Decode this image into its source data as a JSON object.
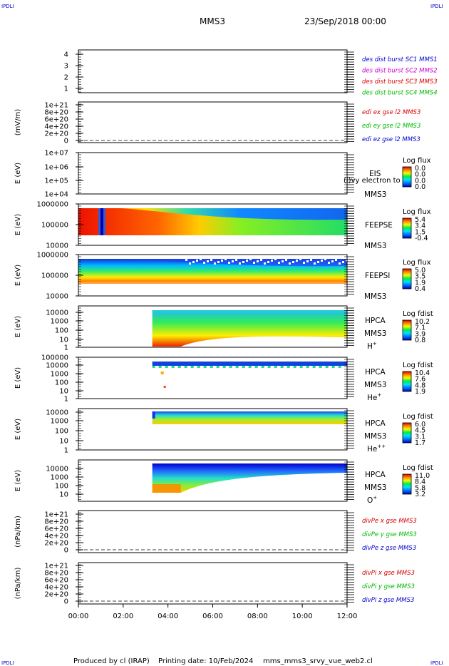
{
  "header": {
    "corner_tl": "IPDLI",
    "corner_tr": "IPDLI",
    "corner_bl": "IPDLI",
    "corner_br": "IPDLI",
    "title": "MMS3",
    "date": "23/Sep/2018 00:00"
  },
  "footer": {
    "produced_by": "Produced by cl (IRAP)",
    "printing_date": "Printing date: 10/Feb/2024",
    "filename": "mms_mms3_srvy_vue_web2.cl"
  },
  "colors": {
    "blue": "#0000cc",
    "magenta": "#cc00cc",
    "red": "#dd0000",
    "green": "#00bb00",
    "axis": "#000000"
  },
  "chart_data": {
    "type": "heatmap",
    "xaxis": {
      "tick_labels": [
        "00:00",
        "02:00",
        "04:00",
        "06:00",
        "08:00",
        "10:00",
        "12:00"
      ],
      "range_hours": [
        0,
        12
      ]
    },
    "panels": [
      {
        "id": "dist-burst",
        "kind": "line",
        "ylabel": "",
        "yticks": [
          "4",
          "3",
          "2",
          "1"
        ],
        "legend": [
          {
            "text": "des dist burst SC1 MMS1",
            "color": "#0000cc"
          },
          {
            "text": "des dist burst SC2 MMS2",
            "color": "#cc00cc"
          },
          {
            "text": "des dist burst SC3 MMS3",
            "color": "#dd0000"
          },
          {
            "text": "des dist burst SC4 MMS4",
            "color": "#00bb00"
          }
        ]
      },
      {
        "id": "edi-e",
        "kind": "line",
        "ylabel": "(mV/m)",
        "yticks": [
          "1e+21",
          "8e+20",
          "6e+20",
          "4e+20",
          "2e+20",
          "0"
        ],
        "zero_line": true,
        "legend": [
          {
            "text": "edi ex gse l2 MMS3",
            "color": "#dd0000"
          },
          {
            "text": "edi ey gse l2 MMS3",
            "color": "#00bb00"
          },
          {
            "text": "edi ez gse l2 MMS3",
            "color": "#0000cc"
          }
        ]
      },
      {
        "id": "eis",
        "kind": "spectrogram",
        "ylabel": "E (eV)",
        "yticks": [
          "1e+07",
          "1e+06",
          "1e+05",
          "1e+04"
        ],
        "label_top": "EIS",
        "label_bottom": "MMS3",
        "overlay_text": "(l)vy electron to",
        "colorbar": {
          "title": "Log flux",
          "ticks": [
            "0.0",
            "0.0",
            "0.0",
            "0.0"
          ]
        }
      },
      {
        "id": "feepse",
        "kind": "spectrogram",
        "ylabel": "E (eV)",
        "yticks": [
          "1000000",
          "100000",
          "10000"
        ],
        "label_top": "FEEPSE",
        "label_bottom": "MMS3",
        "colorbar": {
          "title": "Log flux",
          "ticks": [
            "5.4",
            "3.4",
            "1.5",
            "-0.4"
          ]
        }
      },
      {
        "id": "feepsi",
        "kind": "spectrogram",
        "ylabel": "E (eV)",
        "yticks": [
          "1000000",
          "100000",
          "10000"
        ],
        "label_top": "FEEPSI",
        "label_bottom": "MMS3",
        "colorbar": {
          "title": "Log flux",
          "ticks": [
            "5.0",
            "3.5",
            "1.9",
            "0.4"
          ]
        }
      },
      {
        "id": "hpca-h",
        "kind": "spectrogram",
        "ylabel": "E (eV)",
        "yticks": [
          "10000",
          "1000",
          "100",
          "10",
          "1"
        ],
        "label_top": "HPCA",
        "label_mid": "MMS3",
        "species": "H",
        "species_sup": "+",
        "colorbar": {
          "title": "Log fdist",
          "ticks": [
            "10.2",
            "7.1",
            "3.9",
            "0.8"
          ]
        }
      },
      {
        "id": "hpca-he",
        "kind": "spectrogram",
        "ylabel": "E (eV)",
        "yticks": [
          "100000",
          "10000",
          "1000",
          "100",
          "10",
          "1"
        ],
        "label_top": "HPCA",
        "label_mid": "MMS3",
        "species": "He",
        "species_sup": "+",
        "colorbar": {
          "title": "Log fdist",
          "ticks": [
            "10.4",
            "7.6",
            "4.8",
            "1.9"
          ]
        }
      },
      {
        "id": "hpca-he2",
        "kind": "spectrogram",
        "ylabel": "E (eV)",
        "yticks": [
          "10000",
          "1000",
          "100",
          "10",
          "1"
        ],
        "label_top": "HPCA",
        "label_mid": "MMS3",
        "species": "He",
        "species_sup": "++",
        "colorbar": {
          "title": "Log fdist",
          "ticks": [
            "6.0",
            "4.5",
            "3.1",
            "1.7"
          ]
        }
      },
      {
        "id": "hpca-o",
        "kind": "spectrogram",
        "ylabel": "E (eV)",
        "yticks": [
          "10000",
          "1000",
          "100",
          "10"
        ],
        "label_top": "HPCA",
        "label_mid": "MMS3",
        "species": "O",
        "species_sup": "+",
        "colorbar": {
          "title": "Log fdist",
          "ticks": [
            "11.0",
            "8.4",
            "5.8",
            "3.2"
          ]
        }
      },
      {
        "id": "divpe",
        "kind": "line",
        "ylabel": "(nPa/km)",
        "yticks": [
          "1e+21",
          "8e+20",
          "6e+20",
          "4e+20",
          "2e+20",
          "0"
        ],
        "zero_line": true,
        "legend": [
          {
            "text": "divPe x gse MMS3",
            "color": "#dd0000"
          },
          {
            "text": "divPe y gse MMS3",
            "color": "#00bb00"
          },
          {
            "text": "divPe z gse MMS3",
            "color": "#0000cc"
          }
        ]
      },
      {
        "id": "divpi",
        "kind": "line",
        "ylabel": "(nPa/km)",
        "yticks": [
          "1e+21",
          "8e+20",
          "6e+20",
          "4e+20",
          "2e+20",
          "0"
        ],
        "zero_line": true,
        "legend": [
          {
            "text": "divPi x gse MMS3",
            "color": "#dd0000"
          },
          {
            "text": "divPi y gse MMS3",
            "color": "#00bb00"
          },
          {
            "text": "divPi z gse MMS3",
            "color": "#0000cc"
          }
        ]
      }
    ],
    "spectra": {
      "feepse": {
        "start_hour": 0.0,
        "end_hour": 12.0
      },
      "feepsi": {
        "start_hour": 0.0,
        "end_hour": 12.0
      },
      "hpca-h": {
        "start_hour": 3.3,
        "end_hour": 12.0
      },
      "hpca-he": {
        "start_hour": 3.3,
        "end_hour": 12.0
      },
      "hpca-he2": {
        "start_hour": 3.3,
        "end_hour": 12.0
      },
      "hpca-o": {
        "start_hour": 3.3,
        "end_hour": 12.0
      }
    }
  }
}
